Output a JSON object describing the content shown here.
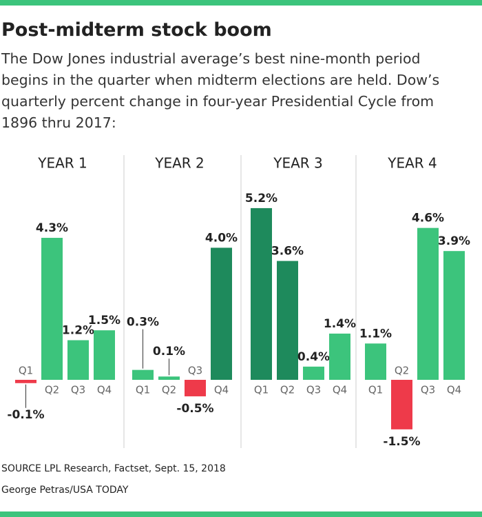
{
  "title": "Post-midterm stock boom",
  "subtitle": "The Dow Jones industrial average’s best nine-month period begins in the quarter when midterm elections are held. Dow’s quarterly percent change in four-year Presidential Cycle from 1896 thru 2017:",
  "source": "SOURCE LPL Research, Factset, Sept. 15, 2018",
  "credit": "George Petras/USA TODAY",
  "chart_data": [
    {
      "type": "bar",
      "title": "YEAR 1",
      "categories": [
        "Q1",
        "Q2",
        "Q3",
        "Q4"
      ],
      "values": [
        -0.1,
        4.3,
        1.2,
        1.5
      ],
      "value_labels": [
        "-0.1%",
        "4.3%",
        "1.2%",
        "1.5%"
      ],
      "colors": [
        "#ee3a4a",
        "#3cc47c",
        "#3cc47c",
        "#3cc47c"
      ]
    },
    {
      "type": "bar",
      "title": "YEAR 2",
      "categories": [
        "Q1",
        "Q2",
        "Q3",
        "Q4"
      ],
      "values": [
        0.3,
        0.1,
        -0.5,
        4.0
      ],
      "value_labels": [
        "0.3%",
        "0.1%",
        "-0.5%",
        "4.0%"
      ],
      "colors": [
        "#3cc47c",
        "#3cc47c",
        "#ee3a4a",
        "#1e8a5c"
      ]
    },
    {
      "type": "bar",
      "title": "YEAR 3",
      "categories": [
        "Q1",
        "Q2",
        "Q3",
        "Q4"
      ],
      "values": [
        5.2,
        3.6,
        0.4,
        1.4
      ],
      "value_labels": [
        "5.2%",
        "3.6%",
        "0.4%",
        "1.4%"
      ],
      "colors": [
        "#1e8a5c",
        "#1e8a5c",
        "#3cc47c",
        "#3cc47c"
      ]
    },
    {
      "type": "bar",
      "title": "YEAR 4",
      "categories": [
        "Q1",
        "Q2",
        "Q3",
        "Q4"
      ],
      "values": [
        1.1,
        -1.5,
        4.6,
        3.9
      ],
      "value_labels": [
        "1.1%",
        "-1.5%",
        "4.6%",
        "3.9%"
      ],
      "colors": [
        "#3cc47c",
        "#ee3a4a",
        "#3cc47c",
        "#3cc47c"
      ]
    }
  ]
}
